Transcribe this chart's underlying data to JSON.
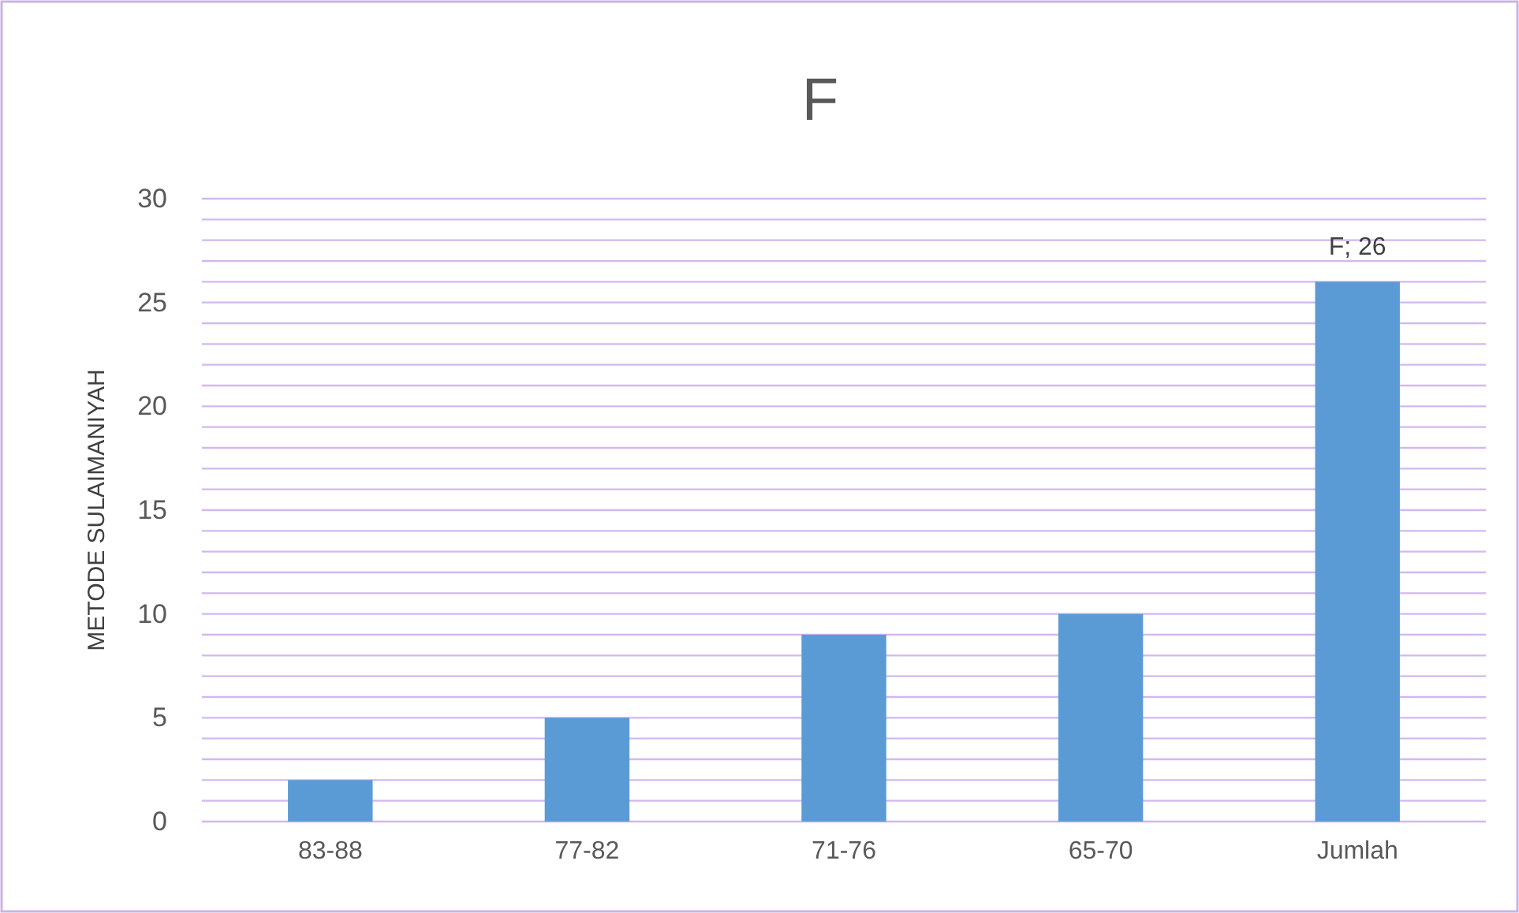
{
  "chart_data": {
    "type": "bar",
    "title": "F",
    "ylabel": "METODE SULAIMANIYAH",
    "categories": [
      "83-88",
      "77-82",
      "71-76",
      "65-70",
      "Jumlah"
    ],
    "values": [
      2,
      5,
      9,
      10,
      26
    ],
    "color": "#5b9bd5",
    "value_labels": [
      null,
      null,
      null,
      null,
      "F; 26"
    ],
    "ylim": [
      0,
      30
    ],
    "yticks": [
      0,
      {
        "value": 1,
        "label": null
      },
      {
        "value": 2,
        "label": null
      },
      {
        "value": 3,
        "label": null
      },
      {
        "value": 4,
        "label": null
      },
      5,
      {
        "value": 6,
        "label": null
      },
      {
        "value": 7,
        "label": null
      },
      {
        "value": 8,
        "label": null
      },
      {
        "value": 9,
        "label": null
      },
      10,
      {
        "value": 11,
        "label": null
      },
      {
        "value": 12,
        "label": null
      },
      {
        "value": 13,
        "label": null
      },
      {
        "value": 14,
        "label": null
      },
      15,
      {
        "value": 16,
        "label": null
      },
      {
        "value": 17,
        "label": null
      },
      {
        "value": 18,
        "label": null
      },
      {
        "value": 19,
        "label": null
      },
      20,
      {
        "value": 21,
        "label": null
      },
      {
        "value": 22,
        "label": null
      },
      {
        "value": 23,
        "label": null
      },
      {
        "value": 24,
        "label": null
      },
      25,
      {
        "value": 26,
        "label": null
      },
      {
        "value": 27,
        "label": null
      },
      {
        "value": 28,
        "label": null
      },
      {
        "value": 29,
        "label": null
      },
      30
    ],
    "grid": true
  }
}
